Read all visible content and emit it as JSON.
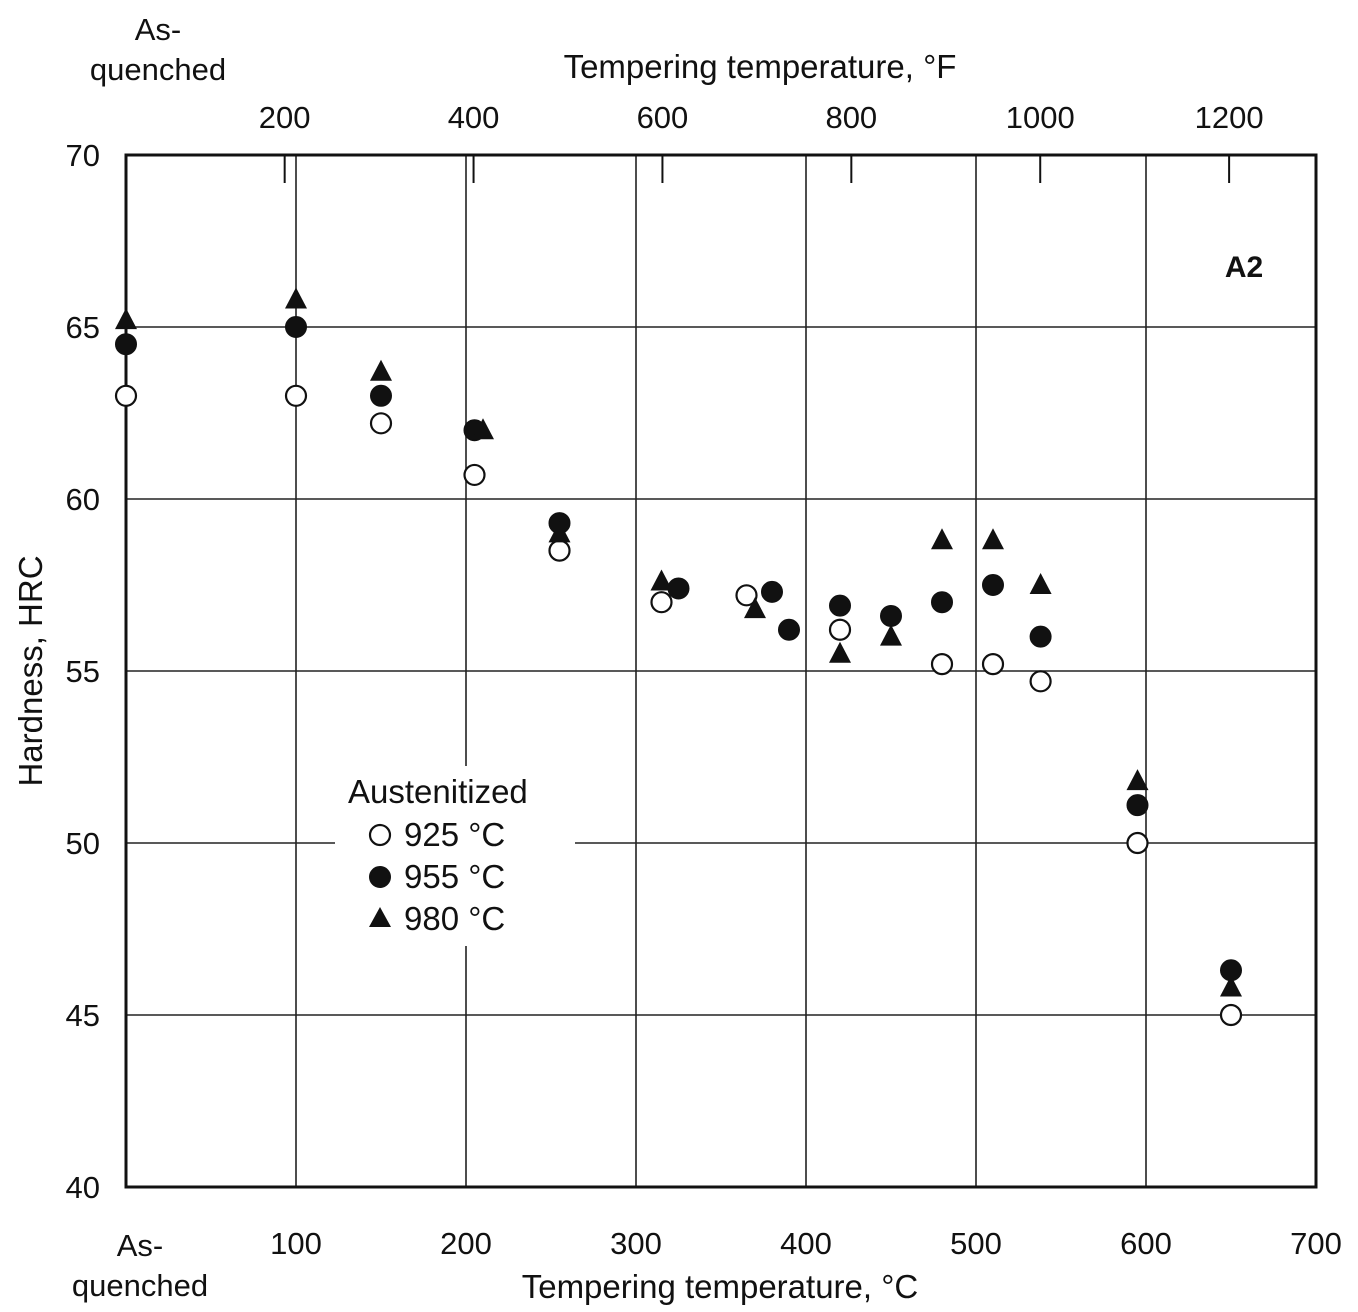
{
  "chart_data": {
    "type": "scatter",
    "panel_label": "A2",
    "x_bottom": {
      "label": "Tempering temperature, °C",
      "min": 0,
      "max": 700,
      "ticks": [
        100,
        200,
        300,
        400,
        500,
        600,
        700
      ],
      "origin_label_line1": "As-",
      "origin_label_line2": "quenched"
    },
    "x_top": {
      "label": "Tempering temperature, °F",
      "ticks": [
        200,
        400,
        600,
        800,
        1000,
        1200
      ],
      "origin_label_line1": "As-",
      "origin_label_line2": "quenched"
    },
    "y": {
      "label": "Hardness, HRC",
      "min": 40,
      "max": 70,
      "ticks": [
        40,
        45,
        50,
        55,
        60,
        65,
        70
      ]
    },
    "grid": true,
    "legend": {
      "title": "Austenitized",
      "placement": "center-left"
    },
    "series": [
      {
        "name": "925 °C",
        "marker": "open-circle",
        "points": [
          [
            0,
            63.0
          ],
          [
            100,
            63.0
          ],
          [
            150,
            62.2
          ],
          [
            205,
            60.7
          ],
          [
            255,
            58.5
          ],
          [
            315,
            57.0
          ],
          [
            365,
            57.2
          ],
          [
            420,
            56.2
          ],
          [
            480,
            55.2
          ],
          [
            510,
            55.2
          ],
          [
            538,
            54.7
          ],
          [
            595,
            50.0
          ],
          [
            650,
            45.0
          ]
        ]
      },
      {
        "name": "955 °C",
        "marker": "filled-circle",
        "points": [
          [
            0,
            64.5
          ],
          [
            100,
            65.0
          ],
          [
            150,
            63.0
          ],
          [
            205,
            62.0
          ],
          [
            255,
            59.3
          ],
          [
            325,
            57.4
          ],
          [
            380,
            57.3
          ],
          [
            390,
            56.2
          ],
          [
            420,
            56.9
          ],
          [
            450,
            56.6
          ],
          [
            480,
            57.0
          ],
          [
            510,
            57.5
          ],
          [
            538,
            56.0
          ],
          [
            595,
            51.1
          ],
          [
            650,
            46.3
          ]
        ]
      },
      {
        "name": "980 °C",
        "marker": "filled-triangle",
        "points": [
          [
            0,
            65.2
          ],
          [
            100,
            65.8
          ],
          [
            150,
            63.7
          ],
          [
            210,
            62.0
          ],
          [
            255,
            59.0
          ],
          [
            315,
            57.6
          ],
          [
            370,
            56.8
          ],
          [
            420,
            55.5
          ],
          [
            450,
            56.0
          ],
          [
            480,
            58.8
          ],
          [
            510,
            58.8
          ],
          [
            538,
            57.5
          ],
          [
            595,
            51.8
          ],
          [
            650,
            45.8
          ]
        ]
      }
    ]
  }
}
